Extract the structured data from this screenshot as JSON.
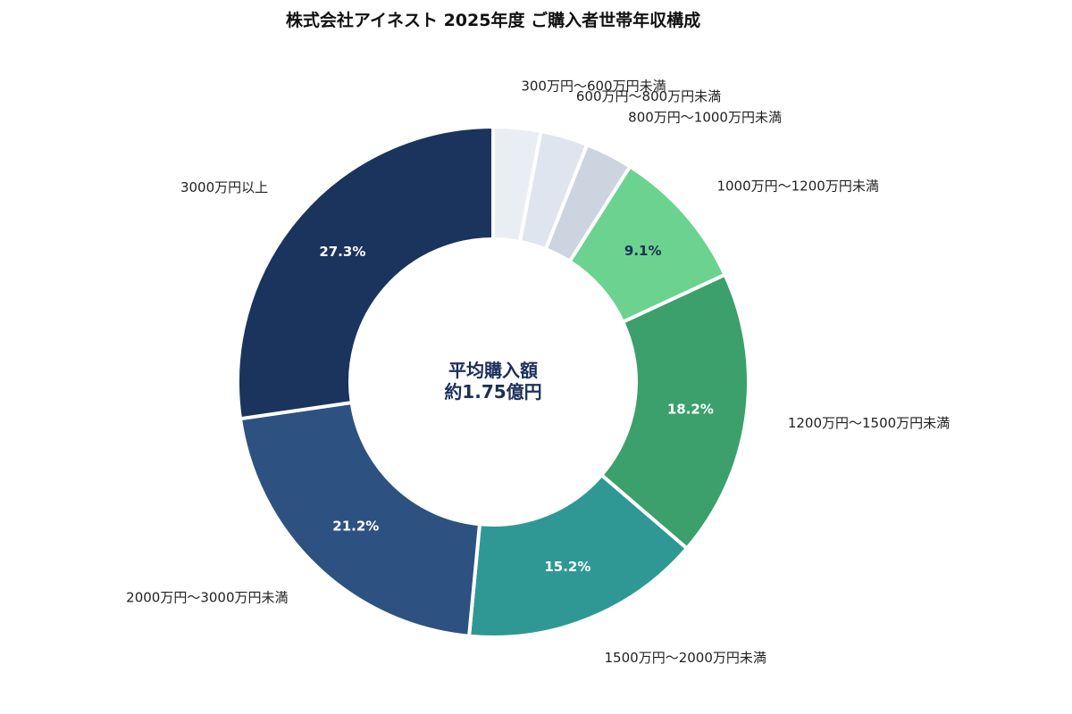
{
  "chart_data": {
    "type": "pie",
    "variant": "donut",
    "title": "株式会社アイネスト 2025年度 ご購入者世帯年収構成",
    "center_label": [
      "平均購入額",
      "約1.75億円"
    ],
    "categories": [
      "300万円〜600万円未満",
      "600万円〜800万円未満",
      "800万円〜1000万円未満",
      "1000万円〜1200万円未満",
      "1200万円〜1500万円未満",
      "1500万円〜2000万円未満",
      "2000万円〜3000万円未満",
      "3000万円以上"
    ],
    "values": [
      3.0,
      3.0,
      3.0,
      9.1,
      18.2,
      15.2,
      21.2,
      27.3
    ],
    "percent_labels": [
      "",
      "",
      "",
      "9.1%",
      "18.2%",
      "15.2%",
      "21.2%",
      "27.3%"
    ],
    "colors": [
      "#e9eef5",
      "#dfe5ee",
      "#cbd4df",
      "#6bd38f",
      "#3ba06b",
      "#309894",
      "#2d5281",
      "#1b345e"
    ],
    "percent_label_colors": [
      "#1b2f58",
      "#1b2f58",
      "#1b2f58",
      "#1b2f58",
      "#ffffff",
      "#ffffff",
      "#ffffff",
      "#ffffff"
    ],
    "start_angle_deg": 0,
    "direction": "clockwise"
  }
}
